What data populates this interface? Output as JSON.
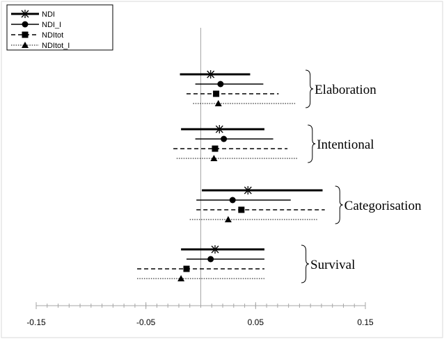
{
  "chart_data": {
    "type": "forest",
    "xlim": [
      -0.15,
      0.15
    ],
    "xticks": [
      -0.15,
      -0.05,
      0.05,
      0.15
    ],
    "xtick_labels": [
      "-0.15",
      "-0.05",
      "0.05",
      "0.15"
    ],
    "reference_line": 0,
    "legend_position": "top-left",
    "series": [
      {
        "name": "NDI",
        "line_style": "solid-thick",
        "marker": "asterisk"
      },
      {
        "name": "NDI_I",
        "line_style": "solid",
        "marker": "circle"
      },
      {
        "name": "NDItot",
        "line_style": "dashed",
        "marker": "square"
      },
      {
        "name": "NDItot_I",
        "line_style": "dotted",
        "marker": "triangle"
      }
    ],
    "groups": [
      {
        "label": "Elaboration",
        "estimates": [
          {
            "series": "NDI",
            "estimate": 0.009,
            "low": -0.019,
            "high": 0.045
          },
          {
            "series": "NDI_I",
            "estimate": 0.018,
            "low": -0.005,
            "high": 0.057
          },
          {
            "series": "NDItot",
            "estimate": 0.014,
            "low": -0.013,
            "high": 0.071
          },
          {
            "series": "NDItot_I",
            "estimate": 0.016,
            "low": -0.007,
            "high": 0.086
          }
        ]
      },
      {
        "label": "Intentional",
        "estimates": [
          {
            "series": "NDI",
            "estimate": 0.017,
            "low": -0.018,
            "high": 0.058
          },
          {
            "series": "NDI_I",
            "estimate": 0.021,
            "low": -0.005,
            "high": 0.066
          },
          {
            "series": "NDItot",
            "estimate": 0.013,
            "low": -0.025,
            "high": 0.079
          },
          {
            "series": "NDItot_I",
            "estimate": 0.012,
            "low": -0.022,
            "high": 0.088
          }
        ]
      },
      {
        "label": "Categorisation",
        "estimates": [
          {
            "series": "NDI",
            "estimate": 0.043,
            "low": 0.001,
            "high": 0.111
          },
          {
            "series": "NDI_I",
            "estimate": 0.029,
            "low": -0.004,
            "high": 0.082
          },
          {
            "series": "NDItot",
            "estimate": 0.037,
            "low": -0.004,
            "high": 0.113
          },
          {
            "series": "NDItot_I",
            "estimate": 0.025,
            "low": -0.01,
            "high": 0.106
          }
        ]
      },
      {
        "label": "Survival",
        "estimates": [
          {
            "series": "NDI",
            "estimate": 0.013,
            "low": -0.018,
            "high": 0.058
          },
          {
            "series": "NDI_I",
            "estimate": 0.009,
            "low": -0.013,
            "high": 0.058
          },
          {
            "series": "NDItot",
            "estimate": -0.013,
            "low": -0.058,
            "high": 0.058
          },
          {
            "series": "NDItot_I",
            "estimate": -0.018,
            "low": -0.058,
            "high": 0.058
          }
        ]
      }
    ]
  }
}
